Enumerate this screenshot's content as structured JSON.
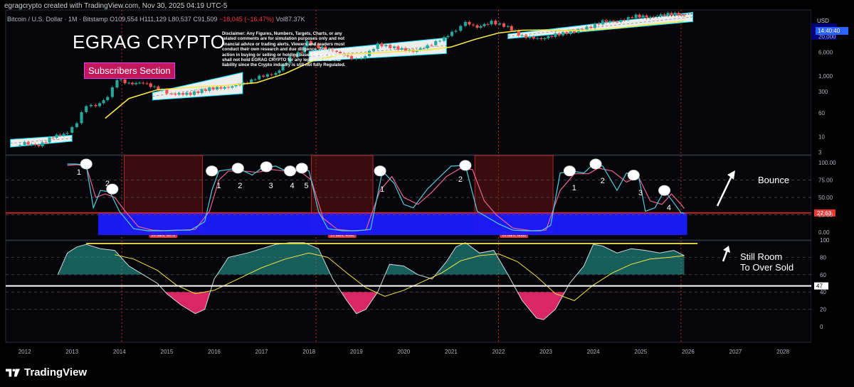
{
  "header": {
    "created_by": "egragcrypto created with TradingView.com, Nov 30, 2025 04:19 UTC-5",
    "symbol": "Bitcoin / U.S. Dollar · 1M · Bitstamp",
    "open": "O109,554",
    "high": "H111,129",
    "low": "L80,537",
    "close": "C91,509",
    "change": "−18,045 (−16.47%)",
    "volume": "Vol87.37K"
  },
  "brand_title": "EGRAG CRYPTO",
  "subscribers_label": "Subscribers Section",
  "disclaimer": "Disclaimer: Any Figures, Numbers, Targets, Charts, or any related comments are for simulation purposes only and not financial advice or trading alerts. Viewers and readers must conduct their own research and due diligence. Any responsible action in buying or selling or holding based on our analysis shall not hold EGRAG CRYPTO for any legal and financial liability since the Crypto industry is still not fully Regulated.",
  "annotations": {
    "bounce": "Bounce",
    "still_room_line1": "Still Room",
    "still_room_line2": "To Over Sold"
  },
  "price_axis": {
    "currency": "USD",
    "countdown": "14:40:40"
  },
  "footer_logo": "TradingView",
  "colors": {
    "background": "#000000",
    "up_candle": "#26a69a",
    "down_candle": "#ef5350",
    "ema_line": "#f5e642",
    "stoch_k": "#4dd0e1",
    "stoch_d": "#f06292",
    "oversold_zone": "#1a1aff",
    "bear_zone": "#8b1a1a",
    "level_line": "#ff1f1f",
    "channel_border": "#00e5ff"
  },
  "chart_data": [
    {
      "type": "candlestick",
      "title": "",
      "scale": "log",
      "y_ticks": [
        3,
        10,
        60,
        300,
        1000,
        6000,
        20000
      ],
      "y_tick_labels": [
        "3",
        "10",
        "60",
        "300",
        "1,000",
        "6,000",
        "20,000"
      ],
      "x_ticks": [
        "2012",
        "2013",
        "2014",
        "2015",
        "2016",
        "2017",
        "2018",
        "2019",
        "2020",
        "2021",
        "2022",
        "2023",
        "2024",
        "2025",
        "2026",
        "2027",
        "2028"
      ],
      "x_range": [
        2011.6,
        2028.6
      ],
      "ylim": [
        2.5,
        150000
      ],
      "series": [
        {
          "name": "",
          "kind": "close_path",
          "x": [
            2011.8,
            2012.0,
            2012.3,
            2012.6,
            2012.9,
            2013.1,
            2013.3,
            2013.5,
            2013.75,
            2013.95,
            2014.2,
            2014.5,
            2014.9,
            2015.1,
            2015.5,
            2015.9,
            2016.3,
            2016.7,
            2016.95,
            2017.3,
            2017.6,
            2017.85,
            2017.96,
            2018.2,
            2018.5,
            2018.9,
            2019.1,
            2019.45,
            2019.8,
            2020.2,
            2020.5,
            2020.85,
            2021.1,
            2021.3,
            2021.55,
            2021.85,
            2022.2,
            2022.5,
            2022.9,
            2023.2,
            2023.6,
            2023.95,
            2024.2,
            2024.5,
            2024.9,
            2025.2,
            2025.5,
            2025.8,
            2025.92
          ],
          "y": [
            5,
            6,
            5,
            10,
            13,
            30,
            110,
            100,
            200,
            800,
            550,
            600,
            320,
            250,
            260,
            380,
            420,
            620,
            950,
            1200,
            4000,
            6500,
            13000,
            9000,
            7000,
            3800,
            3600,
            11000,
            8500,
            6500,
            9500,
            18000,
            33000,
            58000,
            40000,
            60000,
            41000,
            20000,
            16500,
            23000,
            29000,
            42000,
            63000,
            62000,
            96000,
            84000,
            108000,
            110000,
            91509
          ]
        }
      ],
      "overlays": [
        {
          "name": "",
          "kind": "ema",
          "x": [
            2013.7,
            2014.2,
            2014.8,
            2015.5,
            2016.2,
            2016.9,
            2017.5,
            2018.1,
            2018.7,
            2019.3,
            2019.9,
            2020.5,
            2021.0,
            2021.5,
            2022.0,
            2022.5,
            2023.0,
            2023.5,
            2024.0,
            2024.5,
            2025.0,
            2025.5,
            2025.92
          ],
          "y": [
            40,
            180,
            350,
            420,
            480,
            600,
            1200,
            3200,
            5200,
            5600,
            6400,
            7200,
            9000,
            16000,
            26000,
            32000,
            33000,
            31000,
            33000,
            38000,
            46000,
            56000,
            64000
          ]
        }
      ],
      "channels": [
        {
          "x": [
            2011.7,
            2013.0
          ],
          "low": [
            4.5,
            7
          ],
          "high": [
            8,
            11
          ]
        },
        {
          "x": [
            2014.7,
            2016.6
          ],
          "low": [
            160,
            260
          ],
          "high": [
            280,
            1300
          ]
        },
        {
          "x": [
            2018.0,
            2020.9
          ],
          "low": [
            3000,
            5500
          ],
          "high": [
            6500,
            18000
          ]
        },
        {
          "x": [
            2022.2,
            2026.1
          ],
          "low": [
            17000,
            62000
          ],
          "high": [
            24000,
            125000
          ]
        }
      ]
    },
    {
      "type": "line",
      "title": "",
      "y_ticks": [
        0,
        25,
        50,
        75,
        100
      ],
      "y_tick_labels": [
        "0.00",
        "25.00",
        "50.00",
        "75.00",
        "100.00"
      ],
      "level": 27.63,
      "level_label": "27.63",
      "oversold_band": [
        0,
        27.63
      ],
      "series": [
        {
          "name": "",
          "kind": "stoch_k",
          "x": [
            2012.9,
            2013.1,
            2013.3,
            2013.45,
            2013.6,
            2013.8,
            2014.0,
            2014.3,
            2014.6,
            2014.9,
            2015.2,
            2015.5,
            2015.8,
            2015.95,
            2016.1,
            2016.3,
            2016.5,
            2016.8,
            2017.0,
            2017.3,
            2017.6,
            2017.85,
            2018.0,
            2018.2,
            2018.4,
            2018.7,
            2019.0,
            2019.3,
            2019.55,
            2019.8,
            2020.0,
            2020.2,
            2020.5,
            2020.8,
            2021.0,
            2021.3,
            2021.55,
            2021.8,
            2022.0,
            2022.3,
            2022.6,
            2022.9,
            2023.1,
            2023.3,
            2023.55,
            2023.8,
            2024.0,
            2024.2,
            2024.5,
            2024.7,
            2024.95,
            2025.1,
            2025.3,
            2025.5,
            2025.7,
            2025.85,
            2025.92
          ],
          "y": [
            98,
            98,
            96,
            35,
            60,
            58,
            30,
            5,
            2,
            2,
            3,
            3,
            15,
            60,
            88,
            90,
            92,
            82,
            92,
            95,
            85,
            92,
            88,
            30,
            5,
            2,
            2,
            4,
            88,
            70,
            40,
            35,
            62,
            82,
            95,
            96,
            30,
            20,
            12,
            3,
            2,
            2,
            10,
            85,
            88,
            85,
            98,
            95,
            60,
            85,
            82,
            30,
            35,
            60,
            42,
            28,
            27
          ]
        },
        {
          "name": "",
          "kind": "stoch_d",
          "x": [
            2012.9,
            2013.1,
            2013.3,
            2013.5,
            2013.7,
            2013.9,
            2014.1,
            2014.4,
            2014.7,
            2015.0,
            2015.3,
            2015.6,
            2015.9,
            2016.1,
            2016.3,
            2016.6,
            2016.9,
            2017.2,
            2017.5,
            2017.8,
            2018.05,
            2018.3,
            2018.6,
            2018.9,
            2019.2,
            2019.5,
            2019.75,
            2020.0,
            2020.3,
            2020.6,
            2020.9,
            2021.2,
            2021.45,
            2021.7,
            2021.95,
            2022.3,
            2022.7,
            2023.0,
            2023.3,
            2023.6,
            2023.9,
            2024.1,
            2024.4,
            2024.7,
            2024.95,
            2025.2,
            2025.45,
            2025.65,
            2025.85,
            2025.92
          ],
          "y": [
            96,
            97,
            95,
            50,
            55,
            50,
            32,
            8,
            3,
            2,
            3,
            4,
            30,
            75,
            88,
            88,
            86,
            90,
            88,
            88,
            75,
            20,
            4,
            2,
            3,
            60,
            80,
            50,
            40,
            58,
            80,
            92,
            90,
            45,
            25,
            6,
            2,
            3,
            60,
            84,
            84,
            92,
            88,
            72,
            80,
            45,
            40,
            55,
            40,
            34
          ]
        }
      ],
      "markers": [
        "1",
        "2",
        "1",
        "2",
        "3",
        "4",
        "5",
        "1",
        "2",
        "1",
        "2",
        "3",
        "4"
      ],
      "bear_zones": [
        {
          "x": [
            2014.1,
            2015.75
          ],
          "label": "20 bars, 607d"
        },
        {
          "x": [
            2018.05,
            2019.35
          ],
          "label": "15 bars, 456d"
        },
        {
          "x": [
            2021.5,
            2023.15
          ],
          "label": "20 bars, 608d"
        }
      ]
    },
    {
      "type": "area",
      "title": "",
      "y_ticks": [
        0,
        20,
        40,
        60,
        80,
        100
      ],
      "y_tick_labels": [
        "0",
        "20",
        "40",
        "60",
        "80",
        "100"
      ],
      "level": 47,
      "level_label": "47",
      "ceiling": 96,
      "series": [
        {
          "name": "",
          "kind": "rsi",
          "x": [
            2012.7,
            2012.9,
            2013.1,
            2013.3,
            2013.6,
            2013.9,
            2014.2,
            2014.5,
            2014.8,
            2015.0,
            2015.3,
            2015.6,
            2015.8,
            2016.0,
            2016.3,
            2016.7,
            2017.0,
            2017.3,
            2017.6,
            2017.9,
            2018.2,
            2018.5,
            2018.8,
            2019.0,
            2019.2,
            2019.45,
            2019.7,
            2020.0,
            2020.3,
            2020.6,
            2020.9,
            2021.1,
            2021.3,
            2021.6,
            2021.9,
            2022.2,
            2022.5,
            2022.8,
            2022.95,
            2023.2,
            2023.5,
            2023.8,
            2024.0,
            2024.2,
            2024.5,
            2024.8,
            2025.1,
            2025.4,
            2025.7,
            2025.92
          ],
          "y": [
            60,
            85,
            92,
            95,
            90,
            88,
            70,
            60,
            50,
            38,
            25,
            15,
            20,
            55,
            80,
            85,
            90,
            95,
            97,
            97,
            90,
            55,
            30,
            15,
            20,
            40,
            72,
            70,
            60,
            55,
            75,
            92,
            97,
            85,
            88,
            60,
            30,
            10,
            8,
            20,
            50,
            70,
            95,
            93,
            85,
            90,
            88,
            85,
            88,
            82
          ]
        },
        {
          "name": "",
          "kind": "rsi_ma",
          "x": [
            2013.9,
            2014.3,
            2014.8,
            2015.2,
            2015.6,
            2016.0,
            2016.5,
            2017.0,
            2017.5,
            2018.0,
            2018.4,
            2018.8,
            2019.2,
            2019.6,
            2020.0,
            2020.4,
            2020.8,
            2021.2,
            2021.6,
            2022.0,
            2022.4,
            2022.8,
            2023.2,
            2023.6,
            2024.0,
            2024.4,
            2024.8,
            2025.2,
            2025.6,
            2025.92
          ],
          "y": [
            83,
            78,
            65,
            48,
            38,
            42,
            55,
            68,
            78,
            85,
            80,
            62,
            45,
            35,
            42,
            52,
            62,
            76,
            82,
            84,
            75,
            58,
            38,
            30,
            48,
            62,
            72,
            78,
            80,
            82
          ]
        }
      ]
    }
  ]
}
